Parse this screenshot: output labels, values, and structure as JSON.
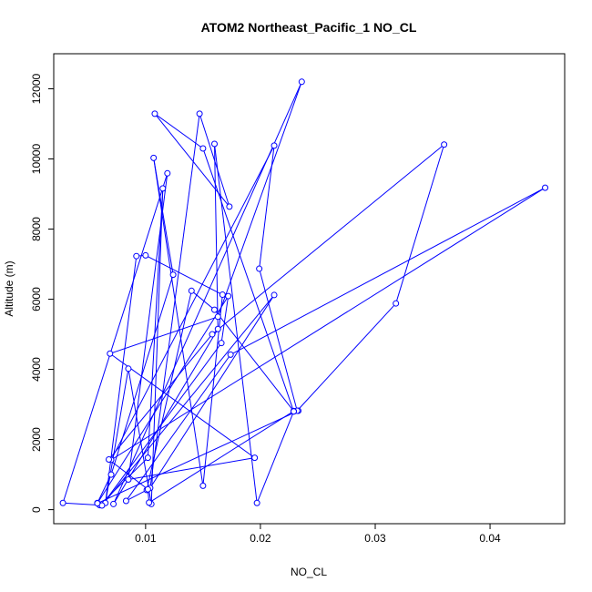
{
  "chart_data": {
    "type": "line",
    "title": "ATOM2 Northeast_Pacific_1 NO_CL",
    "xlabel": "NO_CL",
    "ylabel": "Altitude (m)",
    "xlim": [
      0.002,
      0.0465
    ],
    "ylim": [
      -400,
      13000
    ],
    "xticks": [
      0.01,
      0.02,
      0.03,
      0.04
    ],
    "xtick_labels": [
      "0.01",
      "0.02",
      "0.03",
      "0.04"
    ],
    "yticks": [
      0,
      2000,
      4000,
      6000,
      8000,
      10000,
      12000
    ],
    "ytick_labels": [
      "0",
      "2000",
      "4000",
      "6000",
      "8000",
      "10000",
      "12000"
    ],
    "grid": false,
    "legend": "none",
    "color": "#0000ff",
    "markers": "open-circle",
    "series": [
      {
        "x": [
          0.0058,
          0.007,
          0.0124,
          0.0107,
          0.015,
          0.0167,
          0.01,
          0.0092,
          0.0065,
          0.0085,
          0.0105,
          0.0115,
          0.0102,
          0.006,
          0.0028,
          0.0119,
          0.0085,
          0.0195,
          0.0069,
          0.0163,
          0.0236,
          0.0072,
          0.0163,
          0.016,
          0.0197,
          0.0229,
          0.015,
          0.0108,
          0.0173,
          0.0147,
          0.0104,
          0.0212,
          0.0062,
          0.0166,
          0.0172,
          0.0058,
          0.0233,
          0.0229,
          0.016,
          0.014,
          0.0101,
          0.0083,
          0.0174,
          0.0448,
          0.007,
          0.0212,
          0.0199,
          0.0232,
          0.0318,
          0.036,
          0.0158,
          0.0068,
          0.0102,
          0.0103,
          0.0229,
          0.0229
        ],
        "y": [
          190,
          1000,
          6700,
          10030,
          680,
          6130,
          7250,
          7230,
          190,
          4020,
          160,
          9160,
          1480,
          130,
          190,
          9590,
          860,
          1480,
          4450,
          5500,
          12200,
          160,
          5150,
          10430,
          190,
          2800,
          10300,
          11290,
          8640,
          11290,
          620,
          6120,
          120,
          4750,
          6090,
          180,
          2820,
          2810,
          5700,
          6240,
          560,
          250,
          4420,
          9180,
          1420,
          10380,
          6870,
          2820,
          5880,
          10410,
          5000,
          1430,
          580,
          200,
          2810,
          2800
        ]
      }
    ]
  }
}
